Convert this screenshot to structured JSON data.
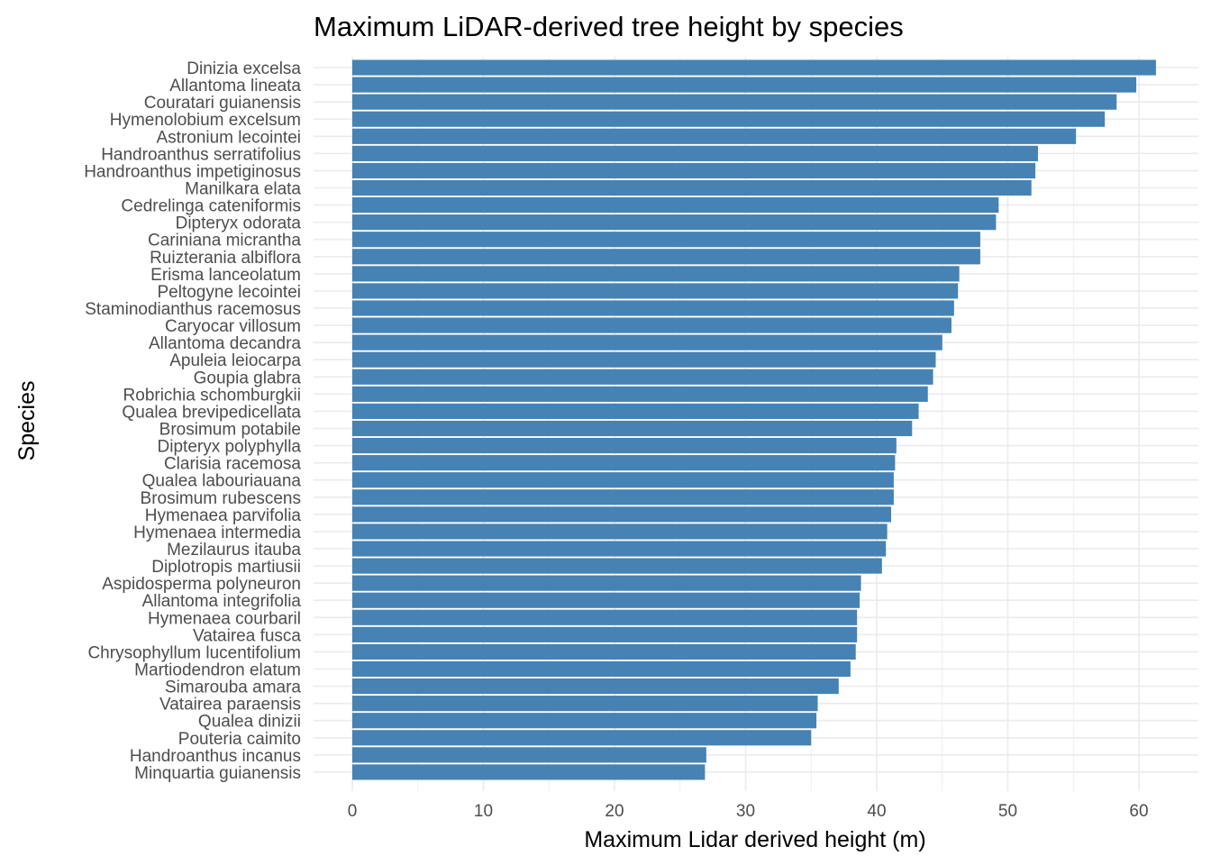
{
  "chart_data": {
    "type": "bar",
    "orientation": "horizontal",
    "title": "Maximum LiDAR-derived tree height by species",
    "xlabel": "Maximum Lidar derived height (m)",
    "ylabel": "Species",
    "xlim": [
      0,
      64
    ],
    "xticks": [
      0,
      10,
      20,
      30,
      40,
      50,
      60
    ],
    "xtick_labels": [
      "0",
      "10",
      "20",
      "30",
      "40",
      "50",
      "60"
    ],
    "grid": true,
    "bar_color": "#4682b4",
    "categories": [
      "Dinizia excelsa",
      "Allantoma lineata",
      "Couratari guianensis",
      "Hymenolobium excelsum",
      "Astronium lecointei",
      "Handroanthus serratifolius",
      "Handroanthus impetiginosus",
      "Manilkara elata",
      "Cedrelinga cateniformis",
      "Dipteryx odorata",
      "Cariniana micrantha",
      "Ruizterania albiflora",
      "Erisma lanceolatum",
      "Peltogyne lecointei",
      "Staminodianthus racemosus",
      "Caryocar villosum",
      "Allantoma decandra",
      "Apuleia leiocarpa",
      "Goupia glabra",
      "Robrichia schomburgkii",
      "Qualea brevipedicellata",
      "Brosimum potabile",
      "Dipteryx polyphylla",
      "Clarisia racemosa",
      "Qualea labouriauana",
      "Brosimum rubescens",
      "Hymenaea parvifolia",
      "Hymenaea intermedia",
      "Mezilaurus itauba",
      "Diplotropis martiusii",
      "Aspidosperma polyneuron",
      "Allantoma integrifolia",
      "Hymenaea courbaril",
      "Vatairea fusca",
      "Chrysophyllum lucentifolium",
      "Martiodendron elatum",
      "Simarouba amara",
      "Vatairea paraensis",
      "Qualea dinizii",
      "Pouteria caimito",
      "Handroanthus incanus",
      "Minquartia guianensis"
    ],
    "values": [
      61.3,
      59.8,
      58.3,
      57.4,
      55.2,
      52.3,
      52.1,
      51.8,
      49.3,
      49.1,
      47.9,
      47.9,
      46.3,
      46.2,
      45.9,
      45.7,
      45.0,
      44.5,
      44.3,
      43.9,
      43.2,
      42.7,
      41.5,
      41.4,
      41.3,
      41.3,
      41.1,
      40.8,
      40.7,
      40.4,
      38.8,
      38.7,
      38.5,
      38.5,
      38.4,
      38.0,
      37.1,
      35.5,
      35.4,
      35.0,
      27.0,
      26.9
    ]
  }
}
